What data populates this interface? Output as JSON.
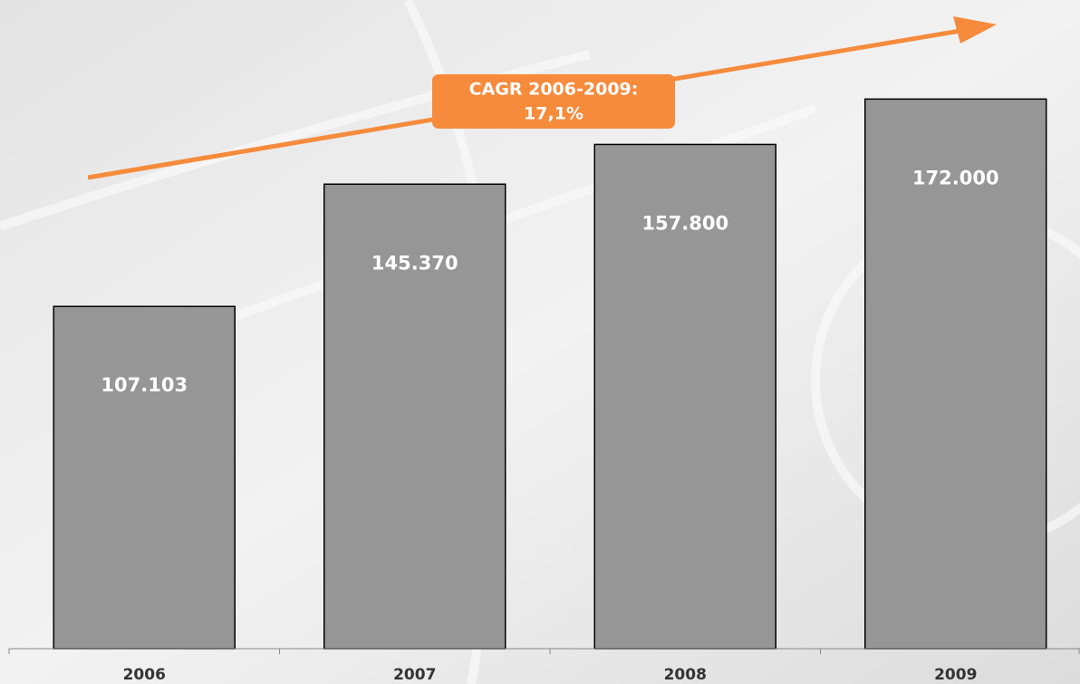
{
  "chart_data": {
    "type": "bar",
    "categories": [
      "2006",
      "2007",
      "2008",
      "2009"
    ],
    "values": [
      107103,
      145370,
      157800,
      172000
    ],
    "value_labels": [
      "107.103",
      "145.370",
      "157.800",
      "172.000"
    ],
    "color": "#969696",
    "ylim": [
      0,
      203000
    ],
    "annotation": {
      "lines": [
        "CAGR 2006-2009:",
        "17,1%"
      ],
      "color": "#f68b3c"
    }
  }
}
